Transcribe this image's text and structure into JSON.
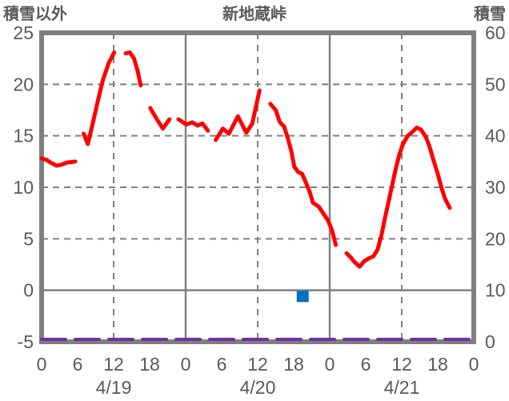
{
  "header": {
    "left_axis_title": "積雪以外",
    "chart_title": "新地蔵峠",
    "right_axis_title": "積雪"
  },
  "colors": {
    "temperature_line": "#FF0000",
    "snow_line": "#7030A0",
    "marker_blue": "#0070C0",
    "grid": "#808080",
    "border": "#7F7F7F",
    "text": "#595959"
  },
  "chart_data": {
    "type": "line",
    "title": "新地蔵峠",
    "left_axis": {
      "title": "積雪以外",
      "range": [
        -5,
        25
      ],
      "ticks": [
        25,
        20,
        15,
        10,
        5,
        0,
        -5
      ]
    },
    "right_axis": {
      "title": "積雪",
      "range": [
        0,
        60
      ],
      "ticks": [
        60,
        50,
        40,
        30,
        20,
        10,
        0
      ]
    },
    "x_axis": {
      "range_hours": [
        0,
        72
      ],
      "tick_interval_hours": 6,
      "tick_labels": [
        "0",
        "6",
        "12",
        "18",
        "0",
        "6",
        "12",
        "18",
        "0",
        "6",
        "12",
        "18",
        "0"
      ],
      "date_labels": [
        "4/19",
        "4/20",
        "4/21"
      ],
      "date_center_hours": [
        12,
        36,
        60
      ]
    },
    "gridlines": {
      "h_dashed": [
        20,
        15,
        10,
        5
      ],
      "h_solid": [
        0
      ],
      "v_dashed_hours": [
        12,
        36,
        60
      ],
      "v_solid_hours": [
        24,
        48
      ]
    },
    "series": [
      {
        "name": "積雪以外",
        "axis": "left",
        "color": "#FF0000",
        "style": "solid",
        "segments": [
          [
            [
              0,
              12.8
            ],
            [
              0.7,
              12.7
            ],
            [
              1.5,
              12.4
            ],
            [
              2.5,
              12.1
            ],
            [
              3.3,
              12.2
            ],
            [
              4.2,
              12.4
            ],
            [
              5.6,
              12.5
            ]
          ],
          [
            [
              7,
              15.2
            ],
            [
              7.7,
              14.2
            ],
            [
              8.4,
              15.9
            ],
            [
              9.3,
              18.2
            ],
            [
              10.2,
              20.4
            ],
            [
              11.2,
              22.1
            ],
            [
              12.1,
              23.1
            ]
          ],
          [
            [
              14,
              23.0
            ],
            [
              14.7,
              23.1
            ],
            [
              15.4,
              22.5
            ],
            [
              16,
              21.3
            ],
            [
              16.5,
              19.9
            ]
          ],
          [
            [
              18.1,
              17.7
            ],
            [
              19.1,
              16.7
            ],
            [
              20.2,
              15.7
            ],
            [
              21.3,
              16.6
            ]
          ],
          [
            [
              22.8,
              16.6
            ],
            [
              24.1,
              16.1
            ],
            [
              25.1,
              16.3
            ],
            [
              26,
              16.0
            ],
            [
              26.8,
              16.2
            ],
            [
              27.7,
              15.5
            ]
          ],
          [
            [
              29,
              14.6
            ],
            [
              30.2,
              15.7
            ],
            [
              31.2,
              15.2
            ],
            [
              32.7,
              16.9
            ],
            [
              34.1,
              15.3
            ],
            [
              35.1,
              16.2
            ],
            [
              36.3,
              19.4
            ]
          ],
          [
            [
              38.1,
              18.1
            ],
            [
              39,
              17.5
            ],
            [
              39.7,
              16.3
            ],
            [
              40.4,
              15.9
            ],
            [
              41,
              14.8
            ],
            [
              41.6,
              13.5
            ],
            [
              42.1,
              12.0
            ],
            [
              42.7,
              11.5
            ],
            [
              43.4,
              11.3
            ],
            [
              44,
              10.5
            ],
            [
              44.7,
              9.5
            ],
            [
              45.2,
              8.5
            ],
            [
              46.2,
              8.1
            ],
            [
              47,
              7.4
            ],
            [
              47.7,
              6.8
            ],
            [
              48.4,
              5.8
            ],
            [
              49,
              4.4
            ]
          ],
          [
            [
              50.8,
              3.6
            ],
            [
              51.5,
              3.2
            ],
            [
              52.2,
              2.7
            ],
            [
              53,
              2.3
            ],
            [
              53.7,
              2.8
            ],
            [
              54.5,
              3.1
            ],
            [
              55.3,
              3.3
            ],
            [
              56,
              4.0
            ],
            [
              56.6,
              5.3
            ],
            [
              57.2,
              7.0
            ],
            [
              57.8,
              8.6
            ],
            [
              58.4,
              10.2
            ],
            [
              59,
              11.8
            ],
            [
              59.6,
              13.2
            ],
            [
              60.2,
              14.2
            ],
            [
              61,
              15.0
            ],
            [
              61.8,
              15.4
            ],
            [
              62.5,
              15.8
            ],
            [
              63.2,
              15.6
            ],
            [
              64,
              14.9
            ],
            [
              64.6,
              14.0
            ],
            [
              65.2,
              12.8
            ],
            [
              66,
              11.3
            ],
            [
              66.6,
              10.0
            ],
            [
              67.2,
              8.9
            ],
            [
              68,
              8.0
            ]
          ]
        ]
      },
      {
        "name": "積雪",
        "axis": "right",
        "color": "#7030A0",
        "style": "dashed",
        "segments": [
          [
            [
              0,
              0
            ],
            [
              72,
              0
            ]
          ]
        ]
      }
    ],
    "marker": {
      "shape": "square",
      "axis": "left",
      "color": "#0070C0",
      "hour": 43.5,
      "value": -0.6
    }
  }
}
